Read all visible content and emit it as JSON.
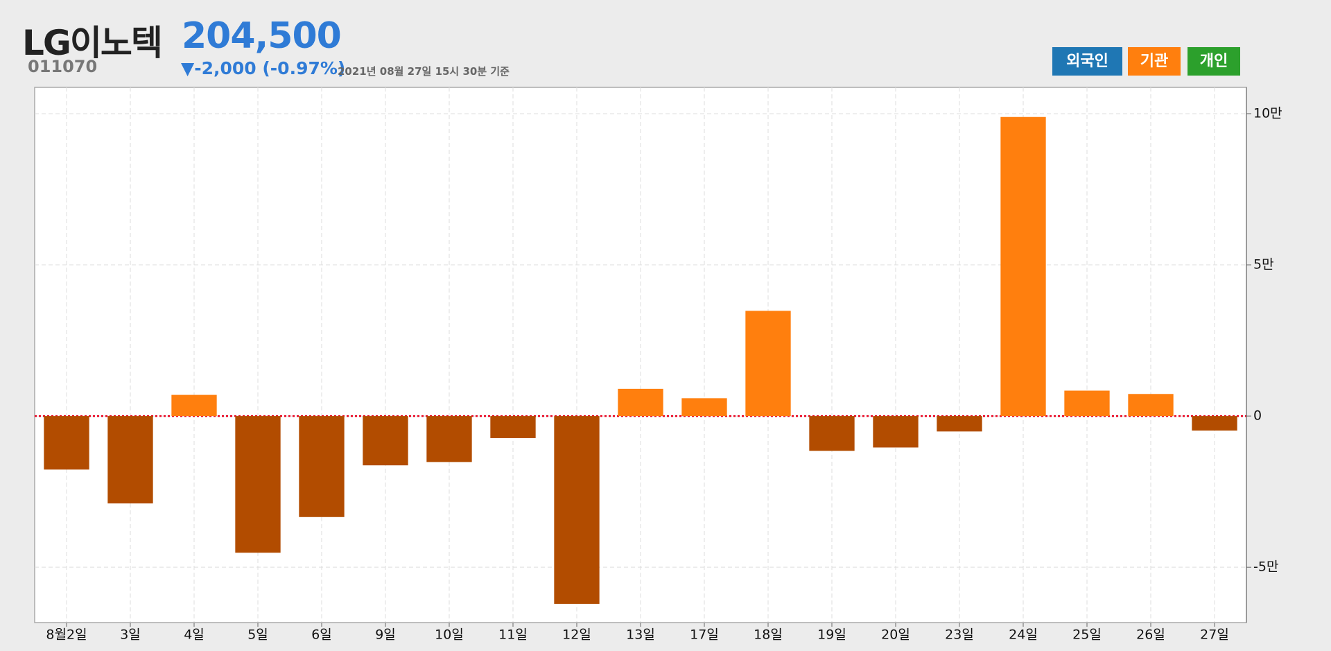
{
  "header": {
    "name": "LG이노텍",
    "price": "204,500",
    "code": "011070",
    "change": "▼-2,000 (-0.97%)",
    "timestamp": "2021년 08월 27일 15시 30분 기준"
  },
  "buttons": [
    {
      "label": "외국인",
      "color": "#1f77b4"
    },
    {
      "label": "기관",
      "color": "#ff7f0e"
    },
    {
      "label": "개인",
      "color": "#2ca02c"
    }
  ],
  "chart_data": {
    "type": "bar",
    "categories": [
      "8월2일",
      "3일",
      "4일",
      "5일",
      "6일",
      "9일",
      "10일",
      "11일",
      "12일",
      "13일",
      "17일",
      "18일",
      "19일",
      "20일",
      "23일",
      "24일",
      "25일",
      "26일",
      "27일"
    ],
    "values": [
      -17700,
      -28900,
      7000,
      -45200,
      -33400,
      -16300,
      -15200,
      -7300,
      -62100,
      9000,
      5900,
      34800,
      -11500,
      -10400,
      -5100,
      98900,
      8400,
      7300,
      -4800
    ],
    "color": "#ff7f0e",
    "negative_color": "#b24c00",
    "ylim": [
      -68300,
      108700
    ],
    "yticks": [
      {
        "value": -50000,
        "label": "-5만"
      },
      0,
      {
        "value": 50000,
        "label": "5만"
      },
      {
        "value": 100000,
        "label": "10만"
      }
    ],
    "grid": true
  }
}
